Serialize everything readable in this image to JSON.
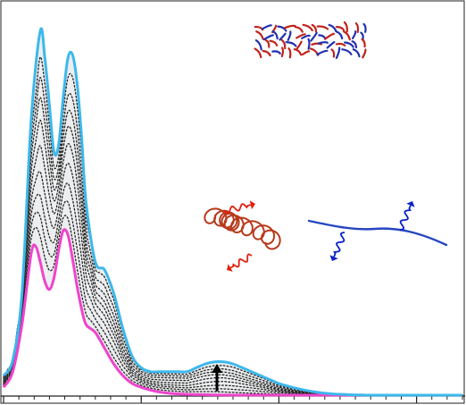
{
  "chart_data": {
    "type": "line",
    "title": "",
    "xlabel": "",
    "ylabel": "",
    "xlim": [
      0,
      100
    ],
    "ylim": [
      0,
      100
    ],
    "x_ticks_minor": [
      0,
      3.33,
      6.67,
      10,
      13.33,
      16.67,
      20,
      23.33,
      26.67,
      30,
      33.33,
      36.67,
      40,
      43.33,
      46.67,
      50,
      53.33,
      56.67,
      60,
      63.33,
      66.67,
      70,
      73.33,
      76.67,
      80,
      83.33,
      86.67,
      90,
      93.33,
      96.67,
      100
    ],
    "x_ticks_major": [
      0,
      30,
      60,
      90
    ],
    "grid": false,
    "legend": "none",
    "series": [
      {
        "role": "upper",
        "color": "#3db8ec",
        "x": [
          0,
          2,
          4,
          6,
          8,
          9,
          10,
          11,
          12,
          13,
          14,
          15,
          16,
          17,
          18,
          20,
          22,
          24,
          26,
          28,
          30,
          32,
          34,
          36,
          38,
          40,
          42,
          44,
          46,
          48,
          50,
          52,
          54,
          56,
          58,
          60,
          62,
          64,
          66,
          68,
          70,
          72,
          74,
          76,
          78,
          80,
          85,
          90,
          95,
          100
        ],
        "y": [
          5,
          9,
          26,
          70,
          93,
          86,
          74,
          62,
          64,
          76,
          86,
          87,
          80,
          66,
          49,
          34,
          32,
          26,
          17,
          10,
          7,
          6,
          6,
          6,
          6,
          6,
          7,
          8,
          8.5,
          8.5,
          8,
          7,
          6,
          5,
          4,
          3,
          2.3,
          1.7,
          1.2,
          0.8,
          0.5,
          0.3,
          0.2,
          0.1,
          0.05,
          0,
          0,
          0,
          0,
          0
        ]
      },
      {
        "role": "lower",
        "color": "#ee44cc",
        "x": [
          0,
          2,
          4,
          6,
          7,
          8,
          9,
          10,
          11,
          12,
          13,
          14,
          15,
          16,
          17,
          18,
          20,
          22,
          24,
          26,
          28,
          30,
          32,
          34,
          36,
          40,
          45,
          50,
          60,
          80,
          100
        ],
        "y": [
          2,
          6,
          18,
          36,
          38,
          34,
          29,
          27,
          30,
          37,
          42,
          41,
          35,
          28,
          22,
          18,
          16,
          12,
          8,
          5,
          3,
          2,
          1.3,
          0.8,
          0.5,
          0.2,
          0.1,
          0,
          0,
          0,
          0
        ]
      }
    ],
    "intermediate_curve_count": 9,
    "annotations": [
      {
        "type": "arrow",
        "x": 46.5,
        "y_from": 1,
        "y_to": 8,
        "color": "#000000"
      }
    ]
  },
  "illustrations": [
    {
      "name": "red-blue-fragment-cluster",
      "colors": [
        "#c0221a",
        "#2030b0"
      ]
    },
    {
      "name": "red-coil-polymer",
      "color": "#b83a1c",
      "wave_color": "#e02010"
    },
    {
      "name": "blue-chain-polymer",
      "color": "#2646c0",
      "wave_color": "#0a22c8"
    }
  ]
}
